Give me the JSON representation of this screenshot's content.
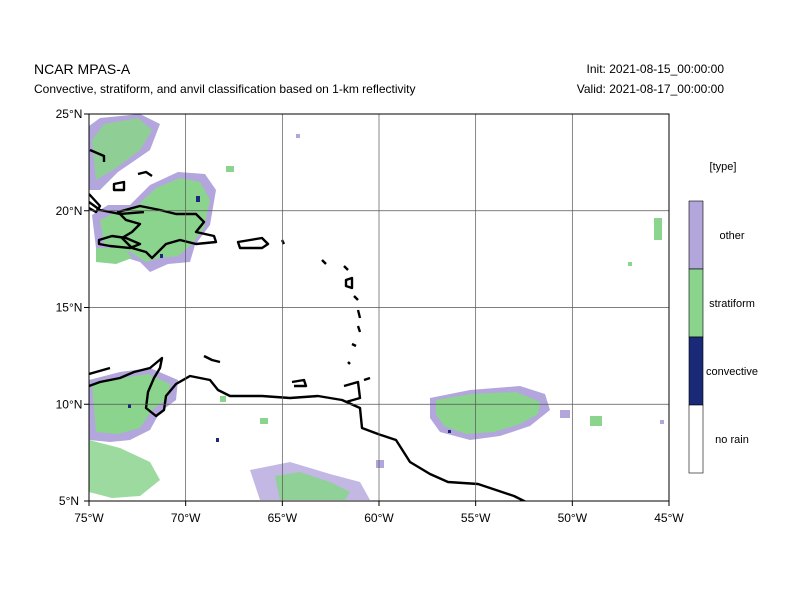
{
  "header": {
    "title": "NCAR MPAS-A",
    "subtitle": "Convective, stratiform, and anvil classification based on 1-km reflectivity",
    "init": "Init: 2021-08-15_00:00:00",
    "valid": "Valid: 2021-08-17_00:00:00"
  },
  "map": {
    "lon_range": [
      -75,
      -45
    ],
    "lat_range": [
      5,
      25
    ],
    "lon_ticks": [
      {
        "value": -75,
        "label": "75°W"
      },
      {
        "value": -70,
        "label": "70°W"
      },
      {
        "value": -65,
        "label": "65°W"
      },
      {
        "value": -60,
        "label": "60°W"
      },
      {
        "value": -55,
        "label": "55°W"
      },
      {
        "value": -50,
        "label": "50°W"
      },
      {
        "value": -45,
        "label": "45°W"
      }
    ],
    "lat_ticks": [
      {
        "value": 5,
        "label": "5°N"
      },
      {
        "value": 10,
        "label": "10°N"
      },
      {
        "value": 15,
        "label": "15°N"
      },
      {
        "value": 20,
        "label": "20°N"
      },
      {
        "value": 25,
        "label": "25°N"
      }
    ],
    "gridlines": true
  },
  "legend": {
    "title": "[type]",
    "items": [
      {
        "label": "other",
        "color": "#b3a6dc"
      },
      {
        "label": "stratiform",
        "color": "#8bd48e"
      },
      {
        "label": "convective",
        "color": "#1a2a78"
      },
      {
        "label": "no rain",
        "color": "#ffffff"
      }
    ]
  }
}
